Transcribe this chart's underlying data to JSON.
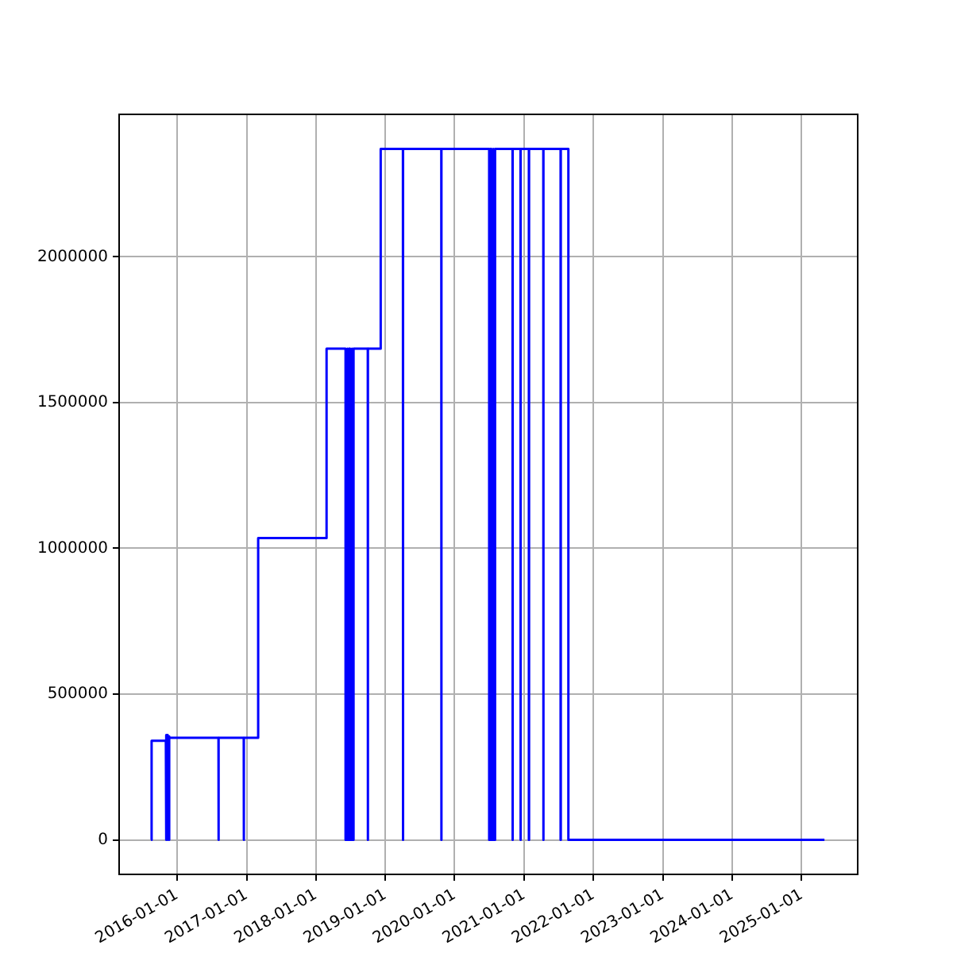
{
  "chart_data": {
    "type": "line",
    "marker": "none",
    "line_style": "solid",
    "grid": true,
    "legend": false,
    "x": [
      "2015-08-17",
      "2015-08-20",
      "2015-11-03",
      "2015-11-03",
      "2015-11-06",
      "2015-11-06",
      "2015-11-10",
      "2015-11-10",
      "2015-11-14",
      "2015-11-14",
      "2015-11-18",
      "2015-11-18",
      "2015-11-22",
      "2015-11-22",
      "2016-08-06",
      "2016-08-06",
      "2016-08-07",
      "2016-08-07",
      "2016-12-17",
      "2016-12-17",
      "2016-12-18",
      "2016-12-18",
      "2017-03-03",
      "2017-03-03",
      "2018-02-26",
      "2018-02-26",
      "2018-06-06",
      "2018-06-06",
      "2018-06-12",
      "2018-06-12",
      "2018-06-18",
      "2018-06-18",
      "2018-06-24",
      "2018-06-24",
      "2018-06-30",
      "2018-06-30",
      "2018-07-06",
      "2018-07-06",
      "2018-07-12",
      "2018-07-12",
      "2018-07-18",
      "2018-07-18",
      "2018-10-01",
      "2018-10-01",
      "2018-10-02",
      "2018-10-02",
      "2018-12-08",
      "2018-12-08",
      "2019-04-04",
      "2019-04-04",
      "2019-04-05",
      "2019-04-05",
      "2019-10-23",
      "2019-10-23",
      "2019-10-24",
      "2019-10-24",
      "2020-07-01",
      "2020-07-01",
      "2020-07-07",
      "2020-07-07",
      "2020-07-13",
      "2020-07-13",
      "2020-07-19",
      "2020-07-19",
      "2020-07-25",
      "2020-07-25",
      "2020-08-01",
      "2020-08-01",
      "2020-11-01",
      "2020-11-01",
      "2020-11-02",
      "2020-11-02",
      "2020-12-13",
      "2020-12-13",
      "2020-12-14",
      "2020-12-14",
      "2021-01-26",
      "2021-01-26",
      "2021-01-27",
      "2021-01-27",
      "2021-04-12",
      "2021-04-12",
      "2021-04-13",
      "2021-04-13",
      "2021-07-12",
      "2021-07-12",
      "2021-07-13",
      "2021-07-13",
      "2021-08-22",
      "2021-08-22",
      "2025-05-01"
    ],
    "series": [
      {
        "color": "#0000ff",
        "values": [
          0,
          340000,
          340000,
          0,
          0,
          360000,
          360000,
          0,
          0,
          355000,
          355000,
          0,
          0,
          350000,
          350000,
          0,
          0,
          350000,
          350000,
          0,
          0,
          350000,
          350000,
          1035000,
          1035000,
          1685000,
          1685000,
          0,
          0,
          1685000,
          1685000,
          0,
          0,
          1685000,
          1685000,
          0,
          0,
          1685000,
          1685000,
          0,
          0,
          1685000,
          1685000,
          0,
          0,
          1685000,
          1685000,
          2370000,
          2370000,
          0,
          0,
          2370000,
          2370000,
          0,
          0,
          2370000,
          2370000,
          0,
          0,
          2370000,
          2370000,
          0,
          0,
          2370000,
          2370000,
          0,
          0,
          2370000,
          2370000,
          0,
          0,
          2370000,
          2370000,
          0,
          0,
          2370000,
          2370000,
          0,
          0,
          2370000,
          2370000,
          0,
          0,
          2370000,
          2370000,
          0,
          0,
          2370000,
          2370000,
          0,
          0
        ]
      }
    ],
    "xlim": [
      "2015-03-02",
      "2025-10-23"
    ],
    "ylim": [
      -118500,
      2488500
    ],
    "xticks": [
      "2016-01-01",
      "2017-01-01",
      "2018-01-01",
      "2019-01-01",
      "2020-01-01",
      "2021-01-01",
      "2022-01-01",
      "2023-01-01",
      "2024-01-01",
      "2025-01-01"
    ],
    "yticks": [
      0,
      500000,
      1000000,
      1500000,
      2000000
    ]
  }
}
